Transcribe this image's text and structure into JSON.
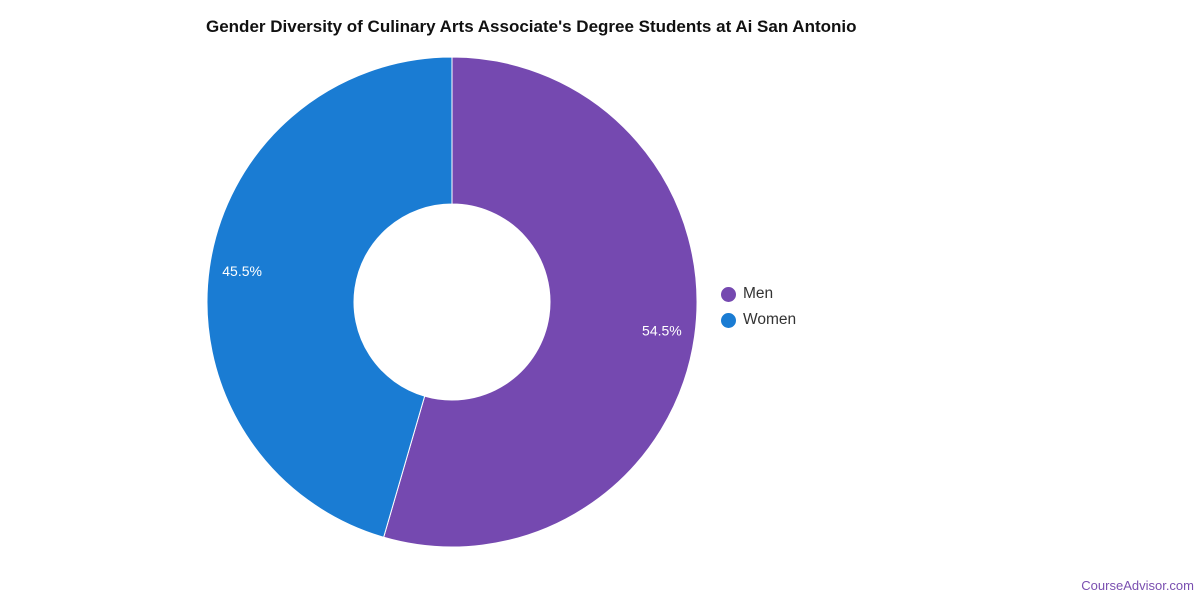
{
  "chart_data": {
    "type": "pie",
    "variant": "donut",
    "title": "Gender Diversity of Culinary Arts Associate's Degree Students at Ai San Antonio",
    "series": [
      {
        "name": "Men",
        "value": 54.5,
        "label": "54.5%",
        "color": "#7549b0"
      },
      {
        "name": "Women",
        "value": 45.5,
        "label": "45.5%",
        "color": "#1a7cd3"
      }
    ],
    "legend_position": "right"
  },
  "watermark": "CourseAdvisor.com"
}
